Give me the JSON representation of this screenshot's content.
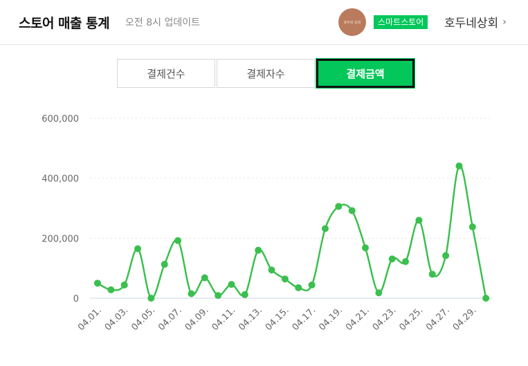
{
  "header": {
    "title": "스토어 매출 통계",
    "update_text": "오전 8시 업데이트",
    "avatar_text": "호두네 상회",
    "badge": "스마트스토어",
    "store_name": "호두네상회",
    "chevron": "›"
  },
  "tabs": [
    {
      "label": "결제건수",
      "active": false
    },
    {
      "label": "결제자수",
      "active": false
    },
    {
      "label": "결제금액",
      "active": true
    }
  ],
  "colors": {
    "accent": "#03c75a",
    "line": "#3bbf4e"
  },
  "chart_data": {
    "type": "line",
    "ylim": [
      0,
      600000
    ],
    "yticks": [
      "0",
      "200,000",
      "400,000",
      "600,000"
    ],
    "ytick_values": [
      0,
      200000,
      400000,
      600000
    ],
    "x": [
      "04.01.",
      "04.02.",
      "04.03.",
      "04.04.",
      "04.05.",
      "04.06.",
      "04.07.",
      "04.08.",
      "04.09.",
      "04.10.",
      "04.11.",
      "04.12.",
      "04.13.",
      "04.14.",
      "04.15.",
      "04.16.",
      "04.17.",
      "04.18.",
      "04.19.",
      "04.20.",
      "04.21.",
      "04.22.",
      "04.23.",
      "04.24.",
      "04.25.",
      "04.26.",
      "04.27.",
      "04.28.",
      "04.29.",
      "04.30."
    ],
    "xtick_labels": [
      "04.01.",
      "04.03.",
      "04.05.",
      "04.07.",
      "04.09.",
      "04.11.",
      "04.13.",
      "04.15.",
      "04.17.",
      "04.19.",
      "04.21.",
      "04.23.",
      "04.25.",
      "04.27.",
      "04.29."
    ],
    "values": [
      50000,
      28000,
      44000,
      165000,
      0,
      113000,
      192000,
      15000,
      68000,
      9000,
      46000,
      12000,
      160000,
      94000,
      64000,
      35000,
      44000,
      232000,
      306000,
      292000,
      168000,
      18000,
      131000,
      122000,
      260000,
      80000,
      142000,
      441000,
      238000,
      0
    ],
    "grid": true
  }
}
